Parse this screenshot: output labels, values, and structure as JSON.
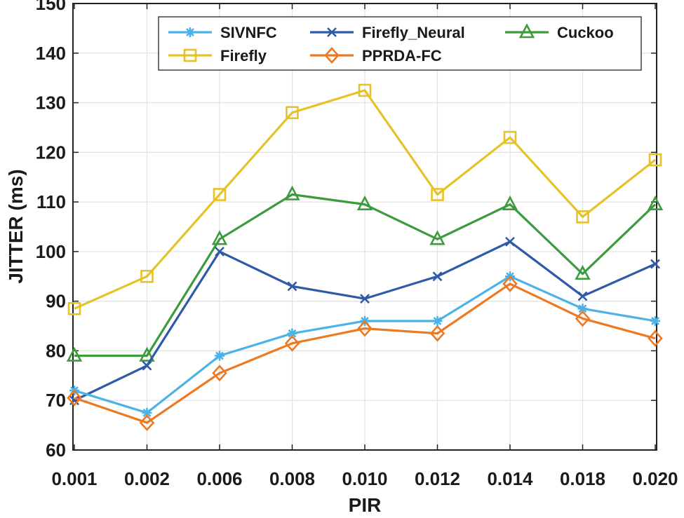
{
  "chart_data": {
    "type": "line",
    "xlabel": "PIR",
    "ylabel": "JITTER (ms)",
    "categories": [
      "0.001",
      "0.002",
      "0.006",
      "0.008",
      "0.010",
      "0.012",
      "0.014",
      "0.018",
      "0.020"
    ],
    "ylim": [
      60,
      150
    ],
    "yticks": [
      60,
      70,
      80,
      90,
      100,
      110,
      120,
      130,
      140,
      150
    ],
    "grid": true,
    "legend_position": "top-right",
    "series": [
      {
        "name": "SIVNFC",
        "color": "#4db3e6",
        "marker": "asterisk",
        "values": [
          72,
          67.5,
          79,
          83.5,
          86,
          86,
          95,
          88.5,
          86
        ]
      },
      {
        "name": "Firefly_Neural",
        "color": "#2f5aa8",
        "marker": "x",
        "values": [
          70,
          77,
          100,
          93,
          90.5,
          95,
          102,
          91,
          97.5
        ]
      },
      {
        "name": "Cuckoo",
        "color": "#3d9a3d",
        "marker": "triangle",
        "values": [
          79,
          79,
          102.5,
          111.5,
          109.5,
          102.5,
          109.5,
          95.5,
          109.5
        ]
      },
      {
        "name": "Firefly",
        "color": "#e6c229",
        "marker": "square",
        "values": [
          88.5,
          95,
          111.5,
          128,
          132.5,
          111.5,
          123,
          107,
          118.5
        ]
      },
      {
        "name": "PPRDA-FC",
        "color": "#ec7a23",
        "marker": "diamond",
        "values": [
          70.5,
          65.5,
          75.5,
          81.5,
          84.5,
          83.5,
          93.5,
          86.5,
          82.5
        ]
      }
    ]
  }
}
